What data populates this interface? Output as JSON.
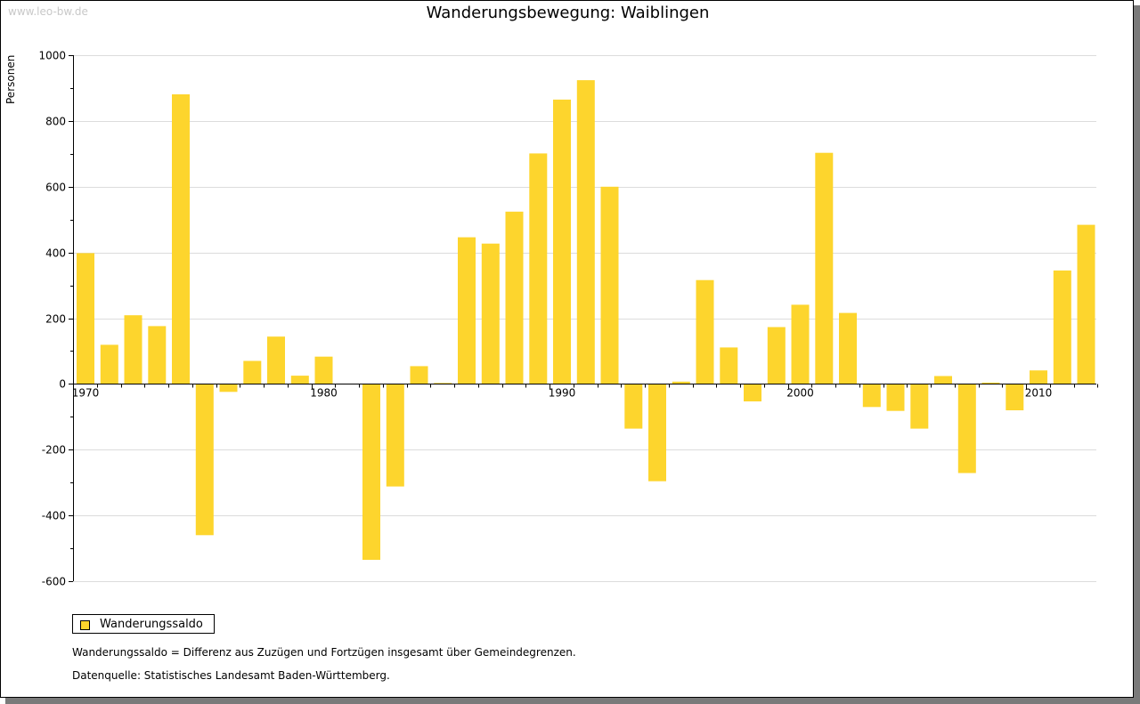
{
  "watermark": "www.leo-bw.de",
  "legend_label": "Wanderungssaldo",
  "notes": [
    "Wanderungssaldo = Differenz aus Zuzügen und Fortzügen insgesamt über Gemeindegrenzen.",
    "Datenquelle: Statistisches Landesamt Baden-Württemberg."
  ],
  "colors": {
    "bar": "#fdd52d",
    "grid": "#dcdcdc",
    "axis": "#000000"
  },
  "chart_data": {
    "type": "bar",
    "title": "Wanderungsbewegung: Waiblingen",
    "ylabel": "Personen",
    "xlabel": "",
    "ylim": [
      -600,
      1000
    ],
    "yticks": [
      -600,
      -400,
      -200,
      0,
      200,
      400,
      600,
      800,
      1000
    ],
    "xtick_labels": [
      "1970",
      "1980",
      "1990",
      "2000",
      "2010"
    ],
    "grid": true,
    "legend_position": "bottom-left",
    "categories": [
      "1970",
      "1971",
      "1972",
      "1973",
      "1974",
      "1975",
      "1976",
      "1977",
      "1978",
      "1979",
      "1980",
      "1981",
      "1982",
      "1983",
      "1984",
      "1985",
      "1986",
      "1987",
      "1988",
      "1989",
      "1990",
      "1991",
      "1992",
      "1993",
      "1994",
      "1995",
      "1996",
      "1997",
      "1998",
      "1999",
      "2000",
      "2001",
      "2002",
      "2003",
      "2004",
      "2005",
      "2006",
      "2007",
      "2008",
      "2009",
      "2010",
      "2011",
      "2012"
    ],
    "series": [
      {
        "name": "Wanderungssaldo",
        "values": [
          398,
          119,
          209,
          176,
          881,
          -460,
          -24,
          70,
          144,
          25,
          83,
          0,
          -535,
          -312,
          54,
          3,
          446,
          427,
          524,
          701,
          865,
          924,
          600,
          -136,
          -296,
          7,
          316,
          111,
          -53,
          173,
          241,
          703,
          216,
          -70,
          -82,
          -136,
          24,
          -271,
          4,
          -80,
          41,
          345,
          484
        ]
      }
    ]
  }
}
